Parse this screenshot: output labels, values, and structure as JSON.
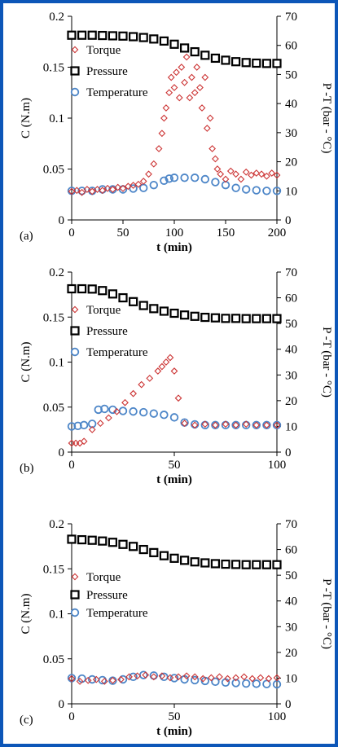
{
  "frame_color": "#0c56b8",
  "chart_data": [
    {
      "type": "scatter",
      "panel_label": "(a)",
      "xlabel": "t (min)",
      "ylabel_left": "C (N.m)",
      "ylabel_right": "P -T (bar - °C)",
      "xlim": [
        0,
        200
      ],
      "ylim_left": [
        0,
        0.2
      ],
      "ylim_right": [
        0,
        70
      ],
      "xticks": [
        "0",
        "50",
        "100",
        "150",
        "200"
      ],
      "yticks_left": [
        "0",
        "0.05",
        "0.1",
        "0.15",
        "0.2"
      ],
      "yticks_right": [
        "0",
        "10",
        "20",
        "30",
        "40",
        "50",
        "60",
        "70"
      ],
      "legend": [
        "Torque",
        "Pressure",
        "Temperature"
      ],
      "series": [
        {
          "name": "Torque",
          "axis": "left",
          "color": "#cc3333",
          "marker": "diamond",
          "x": [
            0,
            5,
            10,
            15,
            20,
            25,
            30,
            35,
            40,
            45,
            50,
            55,
            60,
            65,
            70,
            75,
            80,
            85,
            88,
            90,
            92,
            95,
            97,
            100,
            102,
            105,
            107,
            110,
            112,
            115,
            117,
            120,
            122,
            125,
            127,
            130,
            132,
            135,
            137,
            140,
            142,
            145,
            150,
            155,
            160,
            165,
            170,
            175,
            180,
            185,
            190,
            195,
            200
          ],
          "y": [
            0.028,
            0.029,
            0.027,
            0.03,
            0.028,
            0.03,
            0.029,
            0.031,
            0.03,
            0.032,
            0.031,
            0.033,
            0.034,
            0.035,
            0.038,
            0.045,
            0.055,
            0.07,
            0.085,
            0.1,
            0.11,
            0.125,
            0.14,
            0.13,
            0.145,
            0.12,
            0.15,
            0.135,
            0.16,
            0.12,
            0.14,
            0.125,
            0.15,
            0.13,
            0.11,
            0.14,
            0.09,
            0.1,
            0.07,
            0.06,
            0.05,
            0.045,
            0.04,
            0.048,
            0.045,
            0.04,
            0.047,
            0.044,
            0.046,
            0.045,
            0.043,
            0.046,
            0.044
          ]
        },
        {
          "name": "Pressure",
          "axis": "right",
          "color": "#000000",
          "marker": "square",
          "x": [
            0,
            10,
            20,
            30,
            40,
            50,
            60,
            70,
            80,
            90,
            100,
            110,
            120,
            130,
            140,
            150,
            160,
            170,
            180,
            190,
            200
          ],
          "y": [
            63.5,
            63.5,
            63.5,
            63.4,
            63.3,
            63.2,
            63.0,
            62.7,
            62.2,
            61.5,
            60.4,
            59.1,
            57.8,
            56.6,
            55.6,
            54.9,
            54.4,
            54.1,
            53.9,
            53.8,
            53.8
          ]
        },
        {
          "name": "Temperature",
          "axis": "right",
          "color": "#4d86c8",
          "marker": "circle",
          "x": [
            0,
            10,
            20,
            30,
            40,
            50,
            60,
            70,
            80,
            90,
            95,
            100,
            110,
            120,
            130,
            140,
            150,
            160,
            170,
            180,
            190,
            200
          ],
          "y": [
            10,
            10,
            10,
            10.5,
            10.5,
            10.5,
            10.8,
            11,
            12,
            13.5,
            14.2,
            14.5,
            14.5,
            14.5,
            14,
            13,
            12,
            11,
            10.5,
            10.2,
            10,
            10
          ]
        }
      ]
    },
    {
      "type": "scatter",
      "panel_label": "(b)",
      "xlabel": "t (min)",
      "ylabel_left": "C (N.m)",
      "ylabel_right": "P -T (bar - °C)",
      "xlim": [
        0,
        100
      ],
      "ylim_left": [
        0,
        0.2
      ],
      "ylim_right": [
        0,
        70
      ],
      "xticks": [
        "0",
        "50",
        "100"
      ],
      "yticks_left": [
        "0",
        "0.05",
        "0.1",
        "0.15",
        "0.2"
      ],
      "yticks_right": [
        "0",
        "10",
        "20",
        "30",
        "40",
        "50",
        "60",
        "70"
      ],
      "legend": [
        "Torque",
        "Pressure",
        "Temperature"
      ],
      "series": [
        {
          "name": "Torque",
          "axis": "left",
          "color": "#cc3333",
          "marker": "diamond",
          "x": [
            0,
            2,
            4,
            6,
            10,
            14,
            18,
            22,
            26,
            30,
            34,
            38,
            42,
            44,
            46,
            48,
            50,
            52,
            55,
            60,
            65,
            70,
            75,
            80,
            85,
            90,
            95,
            100
          ],
          "y": [
            0.01,
            0.01,
            0.01,
            0.012,
            0.025,
            0.032,
            0.038,
            0.045,
            0.055,
            0.065,
            0.075,
            0.082,
            0.09,
            0.095,
            0.1,
            0.105,
            0.09,
            0.06,
            0.032,
            0.03,
            0.031,
            0.03,
            0.031,
            0.03,
            0.031,
            0.03,
            0.03,
            0.03
          ]
        },
        {
          "name": "Pressure",
          "axis": "right",
          "color": "#000000",
          "marker": "square",
          "x": [
            0,
            5,
            10,
            15,
            20,
            25,
            30,
            35,
            40,
            45,
            50,
            55,
            60,
            65,
            70,
            75,
            80,
            85,
            90,
            95,
            100
          ],
          "y": [
            63.5,
            63.5,
            63.4,
            62.8,
            61.5,
            60,
            58.5,
            57,
            55.8,
            54.8,
            54,
            53.3,
            52.8,
            52.4,
            52.2,
            52,
            52,
            51.9,
            51.9,
            51.9,
            51.9
          ]
        },
        {
          "name": "Temperature",
          "axis": "right",
          "color": "#4d86c8",
          "marker": "circle",
          "x": [
            0,
            3,
            6,
            10,
            13,
            16,
            20,
            25,
            30,
            35,
            40,
            45,
            50,
            55,
            60,
            65,
            70,
            75,
            80,
            85,
            90,
            95,
            100
          ],
          "y": [
            10,
            10.2,
            10.5,
            11,
            16.5,
            16.8,
            16.5,
            16,
            15.8,
            15.5,
            15,
            14.5,
            13.5,
            11.5,
            10.8,
            10.5,
            10.5,
            10.5,
            10.5,
            10.5,
            10.5,
            10.5,
            10.5
          ]
        }
      ]
    },
    {
      "type": "scatter",
      "panel_label": "(c)",
      "xlabel": "t (min)",
      "ylabel_left": "C (N.m)",
      "ylabel_right": "P -T (bar - °C)",
      "xlim": [
        0,
        100
      ],
      "ylim_left": [
        0,
        0.2
      ],
      "ylim_right": [
        0,
        70
      ],
      "xticks": [
        "0",
        "50",
        "100"
      ],
      "yticks_left": [
        "0",
        "0.05",
        "0.1",
        "0.15",
        "0.2"
      ],
      "yticks_right": [
        "0",
        "10",
        "20",
        "30",
        "40",
        "50",
        "60",
        "70"
      ],
      "legend": [
        "Torque",
        "Pressure",
        "Temperature"
      ],
      "series": [
        {
          "name": "Torque",
          "axis": "left",
          "color": "#cc3333",
          "marker": "diamond",
          "x": [
            0,
            4,
            8,
            12,
            16,
            20,
            24,
            28,
            32,
            36,
            40,
            44,
            48,
            52,
            56,
            60,
            64,
            68,
            72,
            76,
            80,
            84,
            88,
            92,
            96,
            100
          ],
          "y": [
            0.028,
            0.025,
            0.026,
            0.027,
            0.025,
            0.026,
            0.027,
            0.03,
            0.031,
            0.032,
            0.03,
            0.031,
            0.029,
            0.03,
            0.031,
            0.03,
            0.028,
            0.029,
            0.03,
            0.028,
            0.029,
            0.03,
            0.028,
            0.029,
            0.028,
            0.029
          ]
        },
        {
          "name": "Pressure",
          "axis": "right",
          "color": "#000000",
          "marker": "square",
          "x": [
            0,
            5,
            10,
            15,
            20,
            25,
            30,
            35,
            40,
            45,
            50,
            55,
            60,
            65,
            70,
            75,
            80,
            85,
            90,
            95,
            100
          ],
          "y": [
            64,
            63.8,
            63.6,
            63.3,
            62.8,
            62,
            61.2,
            60,
            58.8,
            57.6,
            56.6,
            55.8,
            55.2,
            54.8,
            54.5,
            54.3,
            54.2,
            54.1,
            54.1,
            54.1,
            54.1
          ]
        },
        {
          "name": "Temperature",
          "axis": "right",
          "color": "#4d86c8",
          "marker": "circle",
          "x": [
            0,
            5,
            10,
            15,
            20,
            25,
            30,
            35,
            40,
            45,
            50,
            55,
            60,
            65,
            70,
            75,
            80,
            85,
            90,
            95,
            100
          ],
          "y": [
            10,
            9.8,
            9.5,
            9.2,
            9,
            9.5,
            10.5,
            11.2,
            11,
            10.5,
            10,
            9.5,
            9.2,
            8.9,
            8.6,
            8.3,
            8.1,
            7.9,
            7.8,
            7.7,
            7.6
          ]
        }
      ]
    }
  ]
}
